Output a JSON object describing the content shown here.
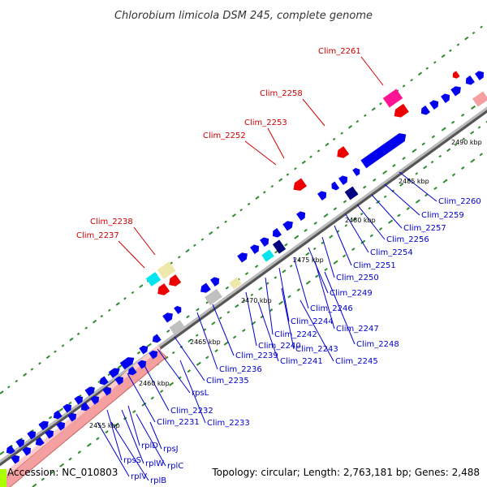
{
  "title": "Chlorobium limicola DSM 245, complete genome",
  "footer": {
    "accession": "Accession: NC_010803",
    "summary": "Topology: circular; Length: 2,763,181 bp; Genes: 2,488"
  },
  "colors": {
    "forward_strand_gene": "#0000ee",
    "reverse_strand_gene": "#ee0000",
    "rRNA": "#f4a0a0",
    "label_forward": "#0000cc",
    "label_reverse": "#cc0000",
    "backbone": "#888888",
    "gc_dots": "#2e8b2e",
    "highlight_magenta": "#ff1493",
    "highlight_yellow": "#eee8aa",
    "highlight_cyan": "#00e5ee",
    "highlight_navy": "#000080",
    "highlight_grey": "#c0c0c0",
    "highlight_lime": "#aaff00"
  },
  "scale_ticks": [
    "2455 kbp",
    "2460 kbp",
    "2465 kbp",
    "2470 kbp",
    "2475 kbp",
    "2480 kbp",
    "2485 kbp",
    "2490 kbp"
  ],
  "labels_reverse": [
    "Clim_2261",
    "Clim_2258",
    "Clim_2253",
    "Clim_2252",
    "Clim_2238",
    "Clim_2237"
  ],
  "labels_forward": [
    "Clim_2260",
    "Clim_2259",
    "Clim_2257",
    "Clim_2256",
    "Clim_2254",
    "Clim_2251",
    "Clim_2250",
    "Clim_2249",
    "Clim_2246",
    "Clim_2244",
    "Clim_2247",
    "Clim_2242",
    "Clim_2248",
    "Clim_2243",
    "Clim_2240",
    "Clim_2245",
    "Clim_2241",
    "Clim_2239",
    "Clim_2236",
    "Clim_2235",
    "rpsL",
    "Clim_2232",
    "Clim_2231",
    "Clim_2233",
    "rpsJ",
    "rplD",
    "rplW",
    "rpsS",
    "rplC",
    "rplV",
    "rplB"
  ]
}
